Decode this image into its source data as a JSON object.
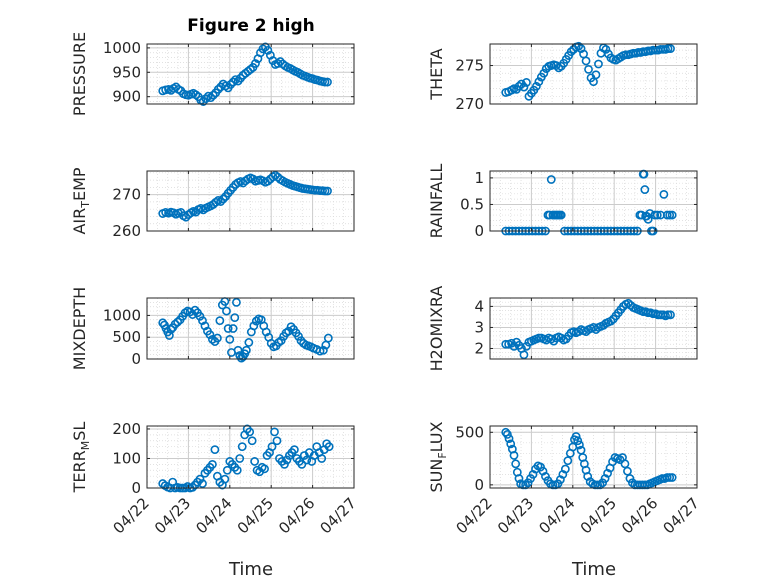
{
  "figure": {
    "title": "Figure 2 high",
    "marker_color": "#0072bd",
    "x_tick_labels": [
      "04/22",
      "04/23",
      "04/24",
      "04/25",
      "04/26",
      "04/27"
    ],
    "x_label": "Time"
  },
  "chart_data": [
    {
      "type": "scatter",
      "id": "pressure",
      "ylabel": "PRESSURE",
      "ylabel_main": "PRESSURE",
      "ylabel_sub": "",
      "ylabel_tail": "",
      "title": "Figure 2 high",
      "xlim": [
        0,
        5
      ],
      "ylim": [
        885,
        1008
      ],
      "yticks": [
        900,
        950,
        1000
      ],
      "grid": true,
      "x": [
        0.38,
        0.45,
        0.52,
        0.58,
        0.64,
        0.7,
        0.76,
        0.82,
        0.88,
        0.94,
        1.0,
        1.06,
        1.12,
        1.18,
        1.24,
        1.3,
        1.36,
        1.42,
        1.48,
        1.54,
        1.6,
        1.66,
        1.72,
        1.78,
        1.84,
        1.9,
        1.96,
        2.02,
        2.08,
        2.14,
        2.2,
        2.26,
        2.32,
        2.38,
        2.44,
        2.5,
        2.56,
        2.62,
        2.68,
        2.74,
        2.8,
        2.86,
        2.92,
        2.98,
        3.04,
        3.1,
        3.16,
        3.22,
        3.28,
        3.34,
        3.4,
        3.46,
        3.52,
        3.58,
        3.64,
        3.7,
        3.76,
        3.82,
        3.88,
        3.94,
        4.0,
        4.06,
        4.12,
        4.18,
        4.24,
        4.3,
        4.36
      ],
      "y": [
        912,
        914,
        915,
        913,
        917,
        920,
        915,
        912,
        906,
        904,
        903,
        905,
        907,
        904,
        900,
        893,
        890,
        896,
        901,
        898,
        903,
        908,
        915,
        920,
        926,
        922,
        918,
        925,
        930,
        935,
        932,
        938,
        944,
        948,
        952,
        956,
        960,
        968,
        978,
        990,
        998,
        1002,
        995,
        985,
        974,
        966,
        968,
        972,
        967,
        963,
        960,
        958,
        955,
        952,
        950,
        947,
        944,
        942,
        940,
        938,
        937,
        935,
        934,
        932,
        931,
        930,
        930
      ]
    },
    {
      "type": "scatter",
      "id": "theta",
      "ylabel": "THETA",
      "ylabel_main": "THETA",
      "ylabel_sub": "",
      "ylabel_tail": "",
      "xlim": [
        0,
        5
      ],
      "ylim": [
        270,
        277.8
      ],
      "yticks": [
        270,
        275
      ],
      "grid": true,
      "x": [
        0.38,
        0.45,
        0.52,
        0.58,
        0.64,
        0.7,
        0.76,
        0.82,
        0.88,
        0.94,
        1.0,
        1.06,
        1.12,
        1.18,
        1.24,
        1.3,
        1.36,
        1.42,
        1.48,
        1.54,
        1.6,
        1.66,
        1.72,
        1.78,
        1.84,
        1.9,
        1.96,
        2.02,
        2.08,
        2.14,
        2.2,
        2.26,
        2.32,
        2.38,
        2.44,
        2.5,
        2.56,
        2.62,
        2.68,
        2.74,
        2.8,
        2.86,
        2.92,
        2.98,
        3.04,
        3.1,
        3.16,
        3.22,
        3.28,
        3.34,
        3.4,
        3.46,
        3.52,
        3.58,
        3.64,
        3.7,
        3.76,
        3.82,
        3.88,
        3.94,
        4.0,
        4.06,
        4.12,
        4.18,
        4.24,
        4.3,
        4.36
      ],
      "y": [
        271.5,
        271.6,
        271.8,
        272.0,
        271.9,
        272.3,
        272.6,
        272.2,
        272.8,
        271.0,
        271.4,
        271.8,
        272.3,
        272.9,
        273.5,
        274.0,
        274.6,
        274.9,
        275.0,
        275.1,
        275.0,
        274.7,
        274.9,
        275.3,
        275.8,
        276.3,
        276.8,
        277.1,
        277.4,
        277.5,
        277.2,
        276.5,
        275.6,
        274.5,
        273.4,
        272.9,
        273.8,
        275.2,
        276.6,
        277.3,
        277.1,
        276.5,
        276.0,
        275.8,
        275.7,
        275.9,
        276.1,
        276.3,
        276.4,
        276.4,
        276.5,
        276.6,
        276.6,
        276.7,
        276.7,
        276.8,
        276.8,
        276.9,
        276.9,
        277.0,
        277.0,
        277.0,
        277.1,
        277.1,
        277.1,
        277.2,
        277.2
      ]
    },
    {
      "type": "scatter",
      "id": "air-temp",
      "ylabel": "AIR_TEMP",
      "ylabel_main": "AIR",
      "ylabel_sub": "T",
      "ylabel_tail": "EMP",
      "xlim": [
        0,
        5
      ],
      "ylim": [
        260,
        276.5
      ],
      "yticks": [
        260,
        270
      ],
      "grid": true,
      "x": [
        0.38,
        0.45,
        0.52,
        0.58,
        0.64,
        0.7,
        0.76,
        0.82,
        0.88,
        0.94,
        1.0,
        1.06,
        1.12,
        1.18,
        1.24,
        1.3,
        1.36,
        1.42,
        1.48,
        1.54,
        1.6,
        1.66,
        1.72,
        1.78,
        1.84,
        1.9,
        1.96,
        2.02,
        2.08,
        2.14,
        2.2,
        2.26,
        2.32,
        2.38,
        2.44,
        2.5,
        2.56,
        2.62,
        2.68,
        2.74,
        2.8,
        2.86,
        2.92,
        2.98,
        3.04,
        3.1,
        3.16,
        3.22,
        3.28,
        3.34,
        3.4,
        3.46,
        3.52,
        3.58,
        3.64,
        3.7,
        3.76,
        3.82,
        3.88,
        3.94,
        4.0,
        4.06,
        4.12,
        4.18,
        4.24,
        4.3,
        4.36
      ],
      "y": [
        264.8,
        265.1,
        264.9,
        265.2,
        265.0,
        264.6,
        264.9,
        265.1,
        264.2,
        263.8,
        264.5,
        265.0,
        265.4,
        265.2,
        265.9,
        266.2,
        265.8,
        266.3,
        266.6,
        266.9,
        267.3,
        267.9,
        268.4,
        268.1,
        268.8,
        269.5,
        270.4,
        271.2,
        272.0,
        272.8,
        273.3,
        273.6,
        273.2,
        273.8,
        274.3,
        274.6,
        274.3,
        273.7,
        273.9,
        274.1,
        273.8,
        273.4,
        273.7,
        274.3,
        274.9,
        275.3,
        274.8,
        274.2,
        273.8,
        273.4,
        273.1,
        272.8,
        272.5,
        272.3,
        272.1,
        271.9,
        271.7,
        271.6,
        271.5,
        271.4,
        271.3,
        271.2,
        271.2,
        271.1,
        271.1,
        271.0,
        271.0
      ]
    },
    {
      "type": "scatter",
      "id": "rainfall",
      "ylabel": "RAINFALL",
      "ylabel_main": "RAINFALL",
      "ylabel_sub": "",
      "ylabel_tail": "",
      "xlim": [
        0,
        5
      ],
      "ylim": [
        0,
        1.13
      ],
      "yticks": [
        0,
        0.5,
        1
      ],
      "grid": true,
      "x": [
        0.38,
        0.46,
        0.54,
        0.62,
        0.7,
        0.78,
        0.86,
        0.94,
        1.02,
        1.1,
        1.18,
        1.26,
        1.34,
        1.4,
        1.44,
        1.48,
        1.52,
        1.56,
        1.6,
        1.64,
        1.68,
        1.72,
        1.8,
        1.88,
        1.96,
        2.04,
        2.12,
        2.2,
        2.28,
        2.36,
        2.44,
        2.52,
        2.6,
        2.68,
        2.76,
        2.84,
        2.92,
        3.0,
        3.08,
        3.16,
        3.24,
        3.32,
        3.4,
        3.48,
        3.56,
        3.62,
        3.66,
        3.7,
        3.72,
        3.74,
        3.76,
        3.78,
        3.82,
        3.86,
        3.9,
        3.94,
        3.98,
        4.04,
        4.12,
        4.2,
        4.28,
        4.34,
        4.4
      ],
      "y": [
        0,
        0,
        0,
        0,
        0,
        0,
        0,
        0,
        0,
        0,
        0,
        0,
        0,
        0.3,
        0.3,
        0.97,
        0.3,
        0.3,
        0.3,
        0.3,
        0.3,
        0.3,
        0,
        0,
        0,
        0,
        0,
        0,
        0,
        0,
        0,
        0,
        0,
        0,
        0,
        0,
        0,
        0,
        0,
        0,
        0,
        0,
        0,
        0,
        0,
        0.3,
        0.3,
        1.07,
        1.07,
        0.78,
        0.28,
        0.28,
        0.22,
        0.33,
        0,
        0,
        0.3,
        0.3,
        0.3,
        0.69,
        0.3,
        0.3,
        0.3
      ]
    },
    {
      "type": "scatter",
      "id": "mixdepth",
      "ylabel": "MIXDEPTH",
      "ylabel_main": "MIXDEPTH",
      "ylabel_sub": "",
      "ylabel_tail": "",
      "xlim": [
        0,
        5
      ],
      "ylim": [
        0,
        1400
      ],
      "yticks": [
        0,
        500,
        1000
      ],
      "grid": true,
      "x": [
        0.38,
        0.42,
        0.46,
        0.5,
        0.54,
        0.58,
        0.62,
        0.68,
        0.74,
        0.8,
        0.86,
        0.92,
        0.98,
        1.04,
        1.1,
        1.16,
        1.22,
        1.28,
        1.34,
        1.4,
        1.46,
        1.52,
        1.58,
        1.64,
        1.7,
        1.76,
        1.82,
        1.88,
        1.92,
        1.96,
        2.0,
        2.04,
        2.08,
        2.12,
        2.16,
        2.2,
        2.24,
        2.28,
        2.32,
        2.36,
        2.4,
        2.46,
        2.52,
        2.58,
        2.64,
        2.7,
        2.76,
        2.82,
        2.88,
        2.94,
        3.0,
        3.06,
        3.12,
        3.18,
        3.24,
        3.3,
        3.36,
        3.42,
        3.48,
        3.54,
        3.6,
        3.66,
        3.72,
        3.78,
        3.84,
        3.9,
        3.96,
        4.02,
        4.1,
        4.18,
        4.26,
        4.32,
        4.38
      ],
      "y": [
        830,
        780,
        700,
        620,
        540,
        680,
        720,
        800,
        850,
        900,
        980,
        1060,
        1100,
        1080,
        1020,
        1120,
        1060,
        980,
        880,
        760,
        640,
        560,
        450,
        400,
        480,
        880,
        1240,
        1320,
        1100,
        700,
        450,
        150,
        700,
        950,
        1300,
        200,
        80,
        20,
        50,
        120,
        200,
        380,
        620,
        760,
        870,
        920,
        900,
        760,
        620,
        500,
        360,
        280,
        300,
        380,
        420,
        520,
        600,
        640,
        740,
        680,
        600,
        520,
        420,
        360,
        320,
        300,
        280,
        250,
        220,
        180,
        200,
        320,
        480
      ]
    },
    {
      "type": "scatter",
      "id": "h2omixra",
      "ylabel": "H2OMIXRA",
      "ylabel_main": "H2OMIXRA",
      "ylabel_sub": "",
      "ylabel_tail": "",
      "xlim": [
        0,
        5
      ],
      "ylim": [
        1.5,
        4.4
      ],
      "yticks": [
        2,
        3,
        4
      ],
      "grid": true,
      "x": [
        0.38,
        0.45,
        0.52,
        0.58,
        0.64,
        0.7,
        0.76,
        0.82,
        0.88,
        0.94,
        1.0,
        1.06,
        1.12,
        1.18,
        1.24,
        1.3,
        1.36,
        1.42,
        1.48,
        1.54,
        1.6,
        1.66,
        1.72,
        1.78,
        1.84,
        1.9,
        1.96,
        2.02,
        2.08,
        2.14,
        2.2,
        2.26,
        2.32,
        2.38,
        2.44,
        2.5,
        2.56,
        2.62,
        2.68,
        2.74,
        2.8,
        2.86,
        2.92,
        2.98,
        3.04,
        3.1,
        3.16,
        3.22,
        3.28,
        3.34,
        3.4,
        3.46,
        3.52,
        3.58,
        3.64,
        3.7,
        3.76,
        3.82,
        3.88,
        3.94,
        4.0,
        4.06,
        4.12,
        4.18,
        4.24,
        4.3,
        4.36
      ],
      "y": [
        2.2,
        2.2,
        2.25,
        2.1,
        2.3,
        2.15,
        2.0,
        1.7,
        2.1,
        2.3,
        2.35,
        2.4,
        2.45,
        2.5,
        2.5,
        2.45,
        2.4,
        2.5,
        2.45,
        2.35,
        2.5,
        2.55,
        2.5,
        2.4,
        2.45,
        2.6,
        2.75,
        2.8,
        2.75,
        2.8,
        2.9,
        2.85,
        2.8,
        2.9,
        2.95,
        3.0,
        2.9,
        3.0,
        3.05,
        3.1,
        3.2,
        3.25,
        3.3,
        3.4,
        3.55,
        3.7,
        3.85,
        4.0,
        4.1,
        4.15,
        4.05,
        3.95,
        3.9,
        3.85,
        3.8,
        3.75,
        3.75,
        3.7,
        3.7,
        3.65,
        3.65,
        3.6,
        3.6,
        3.6,
        3.55,
        3.6,
        3.6
      ]
    },
    {
      "type": "scatter",
      "id": "terr-msl",
      "ylabel": "TERR_MSL",
      "ylabel_main": "TERR",
      "ylabel_sub": "M",
      "ylabel_tail": "SL",
      "xlim": [
        0,
        5
      ],
      "ylim": [
        0,
        210
      ],
      "yticks": [
        0,
        100,
        200
      ],
      "grid": true,
      "x": [
        0.38,
        0.44,
        0.5,
        0.56,
        0.62,
        0.68,
        0.74,
        0.8,
        0.86,
        0.92,
        0.98,
        1.04,
        1.1,
        1.16,
        1.22,
        1.28,
        1.34,
        1.4,
        1.46,
        1.52,
        1.58,
        1.64,
        1.7,
        1.76,
        1.82,
        1.88,
        1.94,
        2.0,
        2.06,
        2.12,
        2.18,
        2.24,
        2.3,
        2.36,
        2.42,
        2.48,
        2.54,
        2.6,
        2.66,
        2.72,
        2.78,
        2.84,
        2.9,
        2.96,
        3.02,
        3.08,
        3.14,
        3.2,
        3.26,
        3.32,
        3.38,
        3.44,
        3.5,
        3.56,
        3.62,
        3.68,
        3.74,
        3.8,
        3.86,
        3.92,
        3.98,
        4.04,
        4.1,
        4.16,
        4.22,
        4.28,
        4.34,
        4.4
      ],
      "y": [
        15,
        8,
        3,
        0,
        20,
        0,
        2,
        0,
        0,
        0,
        5,
        0,
        2,
        10,
        20,
        30,
        15,
        50,
        60,
        70,
        80,
        130,
        40,
        20,
        10,
        30,
        60,
        90,
        80,
        70,
        60,
        100,
        140,
        180,
        200,
        190,
        160,
        90,
        60,
        55,
        70,
        65,
        110,
        120,
        140,
        190,
        160,
        100,
        90,
        80,
        95,
        110,
        120,
        130,
        100,
        90,
        80,
        110,
        95,
        120,
        90,
        110,
        140,
        120,
        100,
        130,
        150,
        140
      ]
    },
    {
      "type": "scatter",
      "id": "sun-flux",
      "ylabel": "SUN_FLUX",
      "ylabel_main": "SUN",
      "ylabel_sub": "F",
      "ylabel_tail": "LUX",
      "xlim": [
        0,
        5
      ],
      "ylim": [
        -30,
        560
      ],
      "yticks": [
        0,
        500
      ],
      "grid": true,
      "x": [
        0.38,
        0.42,
        0.46,
        0.5,
        0.54,
        0.58,
        0.62,
        0.66,
        0.7,
        0.74,
        0.8,
        0.86,
        0.92,
        0.98,
        1.04,
        1.1,
        1.16,
        1.22,
        1.28,
        1.34,
        1.4,
        1.46,
        1.52,
        1.58,
        1.64,
        1.7,
        1.76,
        1.82,
        1.88,
        1.94,
        2.0,
        2.04,
        2.08,
        2.12,
        2.16,
        2.2,
        2.24,
        2.28,
        2.32,
        2.36,
        2.42,
        2.48,
        2.54,
        2.6,
        2.66,
        2.72,
        2.78,
        2.84,
        2.9,
        2.96,
        3.02,
        3.08,
        3.14,
        3.2,
        3.26,
        3.32,
        3.38,
        3.44,
        3.5,
        3.56,
        3.62,
        3.68,
        3.74,
        3.8,
        3.86,
        3.92,
        3.98,
        4.04,
        4.1,
        4.16,
        4.22,
        4.28,
        4.34,
        4.4
      ],
      "y": [
        500,
        480,
        440,
        390,
        340,
        280,
        200,
        120,
        60,
        10,
        0,
        0,
        20,
        60,
        100,
        150,
        180,
        170,
        130,
        80,
        40,
        10,
        0,
        0,
        10,
        50,
        100,
        150,
        230,
        300,
        360,
        430,
        460,
        420,
        380,
        330,
        260,
        200,
        140,
        80,
        30,
        10,
        0,
        0,
        0,
        20,
        60,
        110,
        160,
        220,
        260,
        250,
        240,
        260,
        200,
        130,
        60,
        20,
        0,
        0,
        0,
        0,
        0,
        0,
        10,
        20,
        30,
        40,
        50,
        60,
        60,
        70,
        70,
        70
      ]
    }
  ]
}
